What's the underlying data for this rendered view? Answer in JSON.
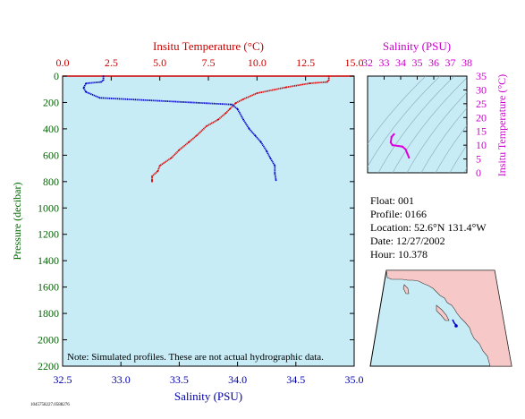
{
  "colors": {
    "temperature": "#dd0000",
    "salinity": "#0000cc",
    "ts_curve": "#dd00dd",
    "axis_temp": "#cc0000",
    "axis_sal": "#0000aa",
    "axis_tsplot": "#cc00cc",
    "plot_bg": "#c8ecf6",
    "map_ocean": "#c8ecf6",
    "map_land": "#f6c8c8"
  },
  "chart_data": [
    {
      "type": "line",
      "title": "",
      "top_axis_label": "Insitu Temperature (°C)",
      "bottom_axis_label": "Salinity (PSU)",
      "left_axis_label": "Pressure (decibar)",
      "x_top": {
        "min": 0,
        "max": 15,
        "ticks": [
          "0.0",
          "2.5",
          "5.0",
          "7.5",
          "10.0",
          "12.5",
          "15.0"
        ]
      },
      "x_bottom": {
        "min": 32.5,
        "max": 35,
        "ticks": [
          "32.5",
          "33.0",
          "33.5",
          "34.0",
          "34.5",
          "35.0"
        ]
      },
      "y": {
        "min": 0,
        "max": 2200,
        "inverted": true,
        "ticks": [
          "0",
          "200",
          "400",
          "600",
          "800",
          "1000",
          "1200",
          "1400",
          "1600",
          "1800",
          "2000",
          "2200"
        ]
      },
      "grid": false,
      "note": "Note: Simulated profiles.  These are not actual hydrographic data.",
      "series": [
        {
          "key": "temperature",
          "axis": "top",
          "points": [
            [
              13.7,
              0
            ],
            [
              13.7,
              30
            ],
            [
              13.6,
              45
            ],
            [
              12.7,
              55
            ],
            [
              11.5,
              85
            ],
            [
              10.0,
              130
            ],
            [
              9.3,
              175
            ],
            [
              8.9,
              205
            ],
            [
              8.6,
              250
            ],
            [
              8.4,
              280
            ],
            [
              8.0,
              330
            ],
            [
              7.4,
              380
            ],
            [
              6.9,
              450
            ],
            [
              6.5,
              500
            ],
            [
              6.0,
              560
            ],
            [
              5.6,
              620
            ],
            [
              5.0,
              680
            ],
            [
              4.9,
              720
            ],
            [
              4.6,
              760
            ],
            [
              4.6,
              790
            ],
            [
              4.6,
              800
            ]
          ]
        },
        {
          "key": "salinity",
          "axis": "bottom",
          "points": [
            [
              32.85,
              0
            ],
            [
              32.85,
              30
            ],
            [
              32.83,
              45
            ],
            [
              32.7,
              55
            ],
            [
              32.68,
              90
            ],
            [
              32.7,
              120
            ],
            [
              32.82,
              165
            ],
            [
              33.95,
              215
            ],
            [
              34.0,
              250
            ],
            [
              34.05,
              330
            ],
            [
              34.1,
              400
            ],
            [
              34.15,
              450
            ],
            [
              34.2,
              500
            ],
            [
              34.25,
              570
            ],
            [
              34.28,
              620
            ],
            [
              34.32,
              680
            ],
            [
              34.32,
              740
            ],
            [
              34.33,
              790
            ]
          ]
        }
      ]
    },
    {
      "type": "line",
      "title": "",
      "top_axis_label": "Salinity (PSU)",
      "right_axis_label": "Insitu Temperature (°C)",
      "x": {
        "min": 32,
        "max": 38,
        "ticks": [
          "32",
          "33",
          "34",
          "35",
          "36",
          "37",
          "38"
        ]
      },
      "y": {
        "min": 0,
        "max": 35,
        "ticks": [
          "0",
          "5",
          "10",
          "15",
          "20",
          "25",
          "30",
          "35"
        ]
      },
      "series": [
        {
          "key": "ts_curve",
          "points": [
            [
              33.6,
              14
            ],
            [
              33.45,
              13
            ],
            [
              33.4,
              11
            ],
            [
              33.5,
              10
            ],
            [
              34.1,
              9.5
            ],
            [
              34.3,
              8.5
            ],
            [
              34.4,
              7
            ],
            [
              34.5,
              5.5
            ]
          ]
        }
      ]
    }
  ],
  "info": {
    "float_line": "Float:  001",
    "profile_line": "Profile:  0166",
    "location_line": "Location:  52.6°N  131.4°W",
    "date_line": "Date:  12/27/2002",
    "hour_line": "Hour:  10.378"
  },
  "footer_id": "1045758227.0588276"
}
